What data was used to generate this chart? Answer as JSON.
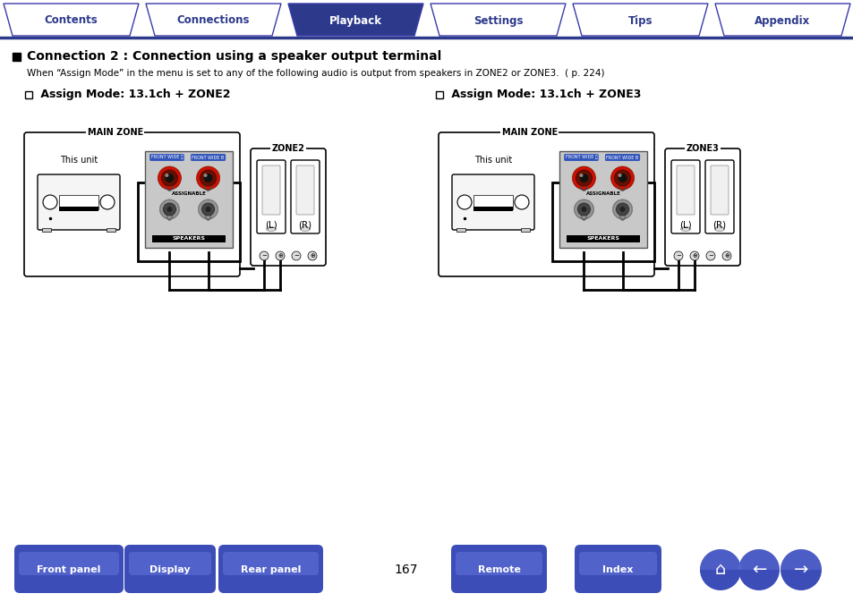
{
  "bg_color": "#ffffff",
  "tab_labels": [
    "Contents",
    "Connections",
    "Playback",
    "Settings",
    "Tips",
    "Appendix"
  ],
  "tab_active_idx": 2,
  "tab_active_color": "#2d3a8c",
  "tab_inactive_color": "#ffffff",
  "tab_border_color": "#3a3aaa",
  "tab_text_active_color": "#ffffff",
  "tab_text_inactive_color": "#2d3a8c",
  "section_title": "Connection 2 : Connection using a speaker output terminal",
  "section_subtitle": "When “Assign Mode” in the menu is set to any of the following audio is output from speakers in ZONE2 or ZONE3.  ( p. 224)",
  "subsection1": "□  Assign Mode: 13.1ch + ZONE2",
  "subsection2": "□  Assign Mode: 13.1ch + ZONE3",
  "bottom_buttons": [
    "Front panel",
    "Display",
    "Rear panel",
    "Remote",
    "Index"
  ],
  "page_number": "167",
  "button_color": "#3d4db7",
  "button_text_color": "#ffffff",
  "divider_color": "#2d3a8c",
  "main_zone_label": "MAIN ZONE",
  "zone2_label": "ZONE2",
  "zone3_label": "ZONE3",
  "this_unit_label": "This unit",
  "speakers_label": "SPEAKERS",
  "left_label": "(L)",
  "right_label": "(R)"
}
